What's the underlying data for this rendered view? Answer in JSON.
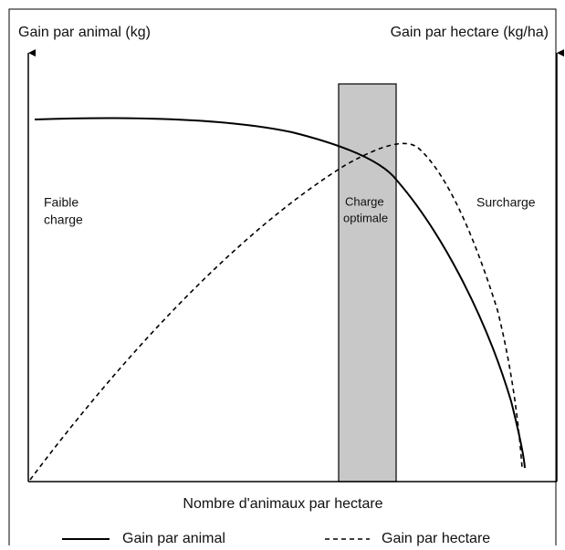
{
  "axes": {
    "left_label": "Gain par animal (kg)",
    "right_label": "Gain par hectare (kg/ha)",
    "x_label": "Nombre d'animaux par hectare"
  },
  "zones": [
    {
      "lines": [
        "Faible",
        "charge"
      ]
    },
    {
      "lines": [
        "Charge",
        "optimale"
      ]
    },
    {
      "lines": [
        "Surcharge"
      ]
    }
  ],
  "legend": [
    "Gain par animal",
    "Gain par hectare"
  ]
}
